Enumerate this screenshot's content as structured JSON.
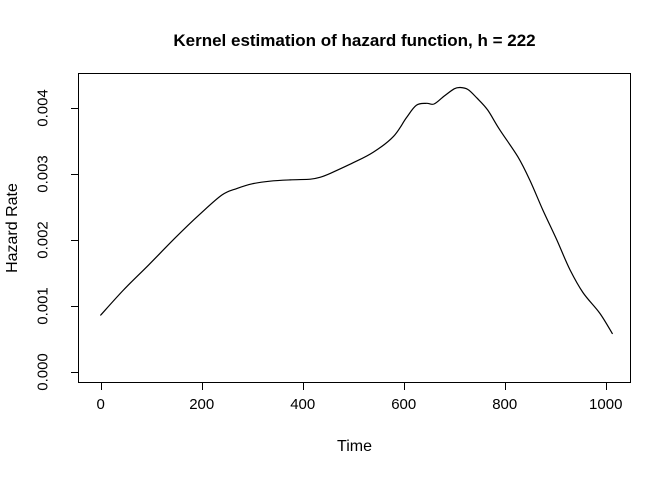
{
  "chart_data": {
    "type": "line",
    "title": "Kernel estimation of hazard function, h = 222",
    "xlabel": "Time",
    "ylabel": "Hazard Rate",
    "x_ticks": [
      0,
      200,
      400,
      600,
      800,
      1000
    ],
    "y_ticks": [
      0,
      0.001,
      0.002,
      0.003,
      0.004
    ],
    "y_tick_labels": [
      "0.000",
      "0.001",
      "0.002",
      "0.003",
      "0.004"
    ],
    "xlim": [
      -45,
      1050
    ],
    "ylim": [
      -0.00017,
      0.00453
    ],
    "grid": false,
    "legend": "none",
    "line_color": "#000000",
    "axis_color": "#000000",
    "background": "#ffffff",
    "series": [
      {
        "x": [
          0,
          45,
          95,
          150,
          195,
          240,
          270,
          300,
          335,
          375,
          415,
          435,
          455,
          500,
          540,
          580,
          605,
          625,
          645,
          660,
          680,
          700,
          712,
          727,
          745,
          766,
          790,
          826,
          850,
          875,
          903,
          929,
          955,
          988,
          1013
        ],
        "y": [
          0.00086,
          0.00124,
          0.00162,
          0.00205,
          0.00238,
          0.00268,
          0.00278,
          0.00285,
          0.00289,
          0.00291,
          0.00292,
          0.00295,
          0.00301,
          0.00317,
          0.00333,
          0.00357,
          0.00385,
          0.00404,
          0.00407,
          0.00406,
          0.00418,
          0.00429,
          0.00431,
          0.00428,
          0.00415,
          0.00397,
          0.00367,
          0.00326,
          0.0029,
          0.00246,
          0.002,
          0.00155,
          0.0012,
          0.00089,
          0.00058
        ]
      }
    ]
  }
}
